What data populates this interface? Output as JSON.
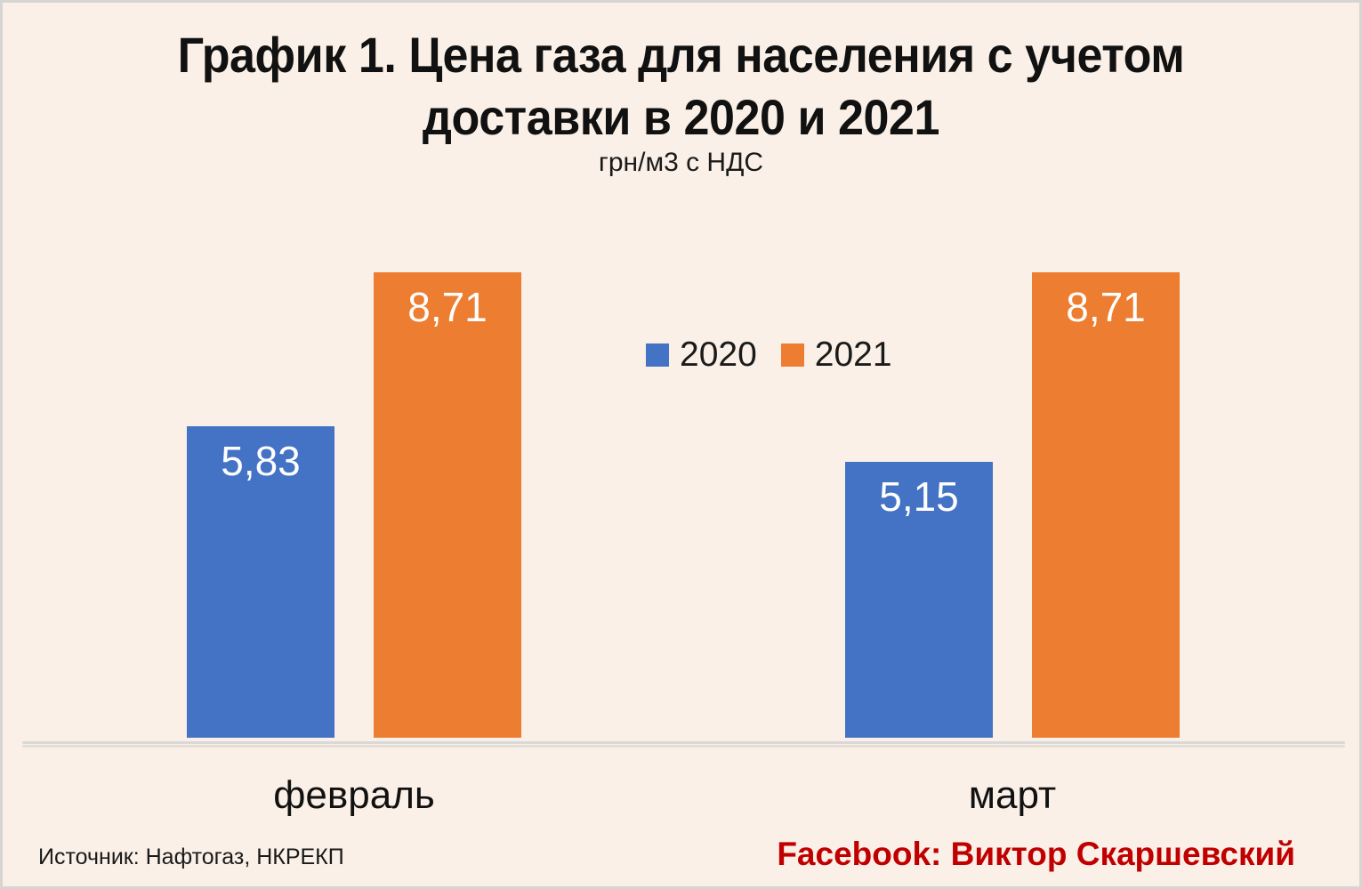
{
  "header": {
    "title_line1": "График 1. Цена газа для населения с учетом",
    "title_line2": "доставки в 2020 и 2021",
    "units": "грн/м3 с НДС"
  },
  "chart_data": {
    "type": "bar",
    "title": "График 1. Цена газа для населения с учетом доставки в 2020 и 2021",
    "ylabel": "грн/м3 с НДС",
    "categories": [
      "февраль",
      "март"
    ],
    "series": [
      {
        "name": "2020",
        "color": "#4472C4",
        "values": [
          5.83,
          5.15
        ],
        "labels": [
          "5,83",
          "5,15"
        ]
      },
      {
        "name": "2021",
        "color": "#ED7D31",
        "values": [
          8.71,
          8.71
        ],
        "labels": [
          "8,71",
          "8,71"
        ]
      }
    ],
    "ylim": [
      0,
      9
    ],
    "grid": false,
    "axis_line_only": true,
    "legend_position": "upper-center",
    "value_labels_position": "inside-top",
    "value_label_color": "#FFFFFF"
  },
  "footer": {
    "source": "Источник: Нафтогаз, НКРЕКП",
    "credit": "Facebook: Виктор Скаршевский"
  },
  "colors": {
    "background": "#FAF0E7",
    "border": "#d7d5d1",
    "series_2020": "#4472C4",
    "series_2021": "#ED7D31",
    "axis_line": "#D9D9D9",
    "title_text": "#111111",
    "credit_text": "#C00000"
  }
}
